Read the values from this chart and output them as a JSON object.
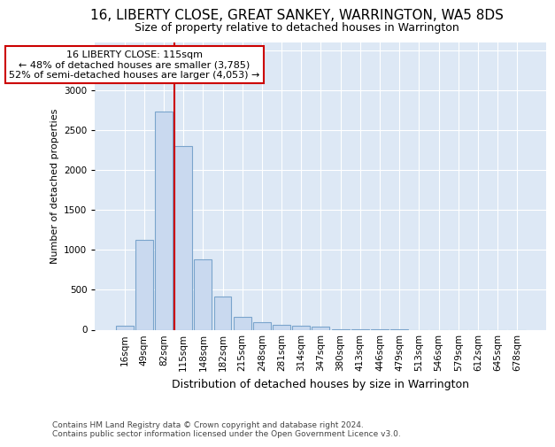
{
  "title": "16, LIBERTY CLOSE, GREAT SANKEY, WARRINGTON, WA5 8DS",
  "subtitle": "Size of property relative to detached houses in Warrington",
  "xlabel": "Distribution of detached houses by size in Warrington",
  "ylabel": "Number of detached properties",
  "footnote1": "Contains HM Land Registry data © Crown copyright and database right 2024.",
  "footnote2": "Contains public sector information licensed under the Open Government Licence v3.0.",
  "bin_labels": [
    "16sqm",
    "49sqm",
    "82sqm",
    "115sqm",
    "148sqm",
    "182sqm",
    "215sqm",
    "248sqm",
    "281sqm",
    "314sqm",
    "347sqm",
    "380sqm",
    "413sqm",
    "446sqm",
    "479sqm",
    "513sqm",
    "546sqm",
    "579sqm",
    "612sqm",
    "645sqm",
    "678sqm"
  ],
  "bar_values": [
    50,
    1120,
    2730,
    2300,
    880,
    420,
    165,
    95,
    60,
    50,
    35,
    8,
    5,
    2,
    1,
    0,
    0,
    0,
    0,
    0,
    0
  ],
  "bar_color": "#c9d9ef",
  "bar_edge_color": "#7aa4cc",
  "vline_color": "#cc0000",
  "ylim": [
    0,
    3600
  ],
  "yticks": [
    0,
    500,
    1000,
    1500,
    2000,
    2500,
    3000,
    3500
  ],
  "annotation_title": "16 LIBERTY CLOSE: 115sqm",
  "annotation_line1": "← 48% of detached houses are smaller (3,785)",
  "annotation_line2": "52% of semi-detached houses are larger (4,053) →",
  "annotation_box_facecolor": "#ffffff",
  "annotation_box_edgecolor": "#cc0000",
  "fig_bg_color": "#ffffff",
  "plot_bg_color": "#dde8f5",
  "grid_color": "#ffffff",
  "title_fontsize": 11,
  "subtitle_fontsize": 9,
  "ylabel_fontsize": 8,
  "xlabel_fontsize": 9,
  "tick_fontsize": 7.5,
  "footnote_fontsize": 6.5
}
